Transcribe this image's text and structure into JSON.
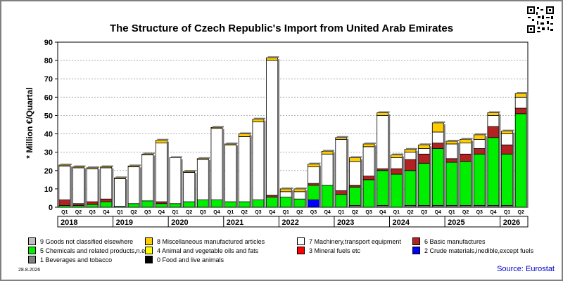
{
  "title": "The Structure of Czech Republic's Import from United Arab Emirates",
  "footer_date": "28.8.2026",
  "source": "Source: Eurostat",
  "chart_data": {
    "type": "bar",
    "stacked": true,
    "ylabel": "* Million €/Quartal",
    "ylim": [
      0,
      90
    ],
    "yticks": [
      0,
      10,
      20,
      30,
      40,
      50,
      60,
      70,
      80,
      90
    ],
    "grid": true,
    "categories": [
      "Q1",
      "Q2",
      "Q3",
      "Q4",
      "Q1",
      "Q2",
      "Q3",
      "Q4",
      "Q1",
      "Q2",
      "Q3",
      "Q4",
      "Q1",
      "Q2",
      "Q3",
      "Q4",
      "Q1",
      "Q2",
      "Q3",
      "Q4",
      "Q1",
      "Q2",
      "Q3",
      "Q4",
      "Q1",
      "Q2",
      "Q3",
      "Q4",
      "Q1",
      "Q2",
      "Q3",
      "Q4",
      "Q1",
      "Q2"
    ],
    "years": [
      {
        "label": "2018",
        "count": 4
      },
      {
        "label": "2019",
        "count": 4
      },
      {
        "label": "2020",
        "count": 4
      },
      {
        "label": "2021",
        "count": 4
      },
      {
        "label": "2022",
        "count": 4
      },
      {
        "label": "2023",
        "count": 4
      },
      {
        "label": "2024",
        "count": 4
      },
      {
        "label": "2025",
        "count": 4
      },
      {
        "label": "2026",
        "count": 2
      }
    ],
    "series": [
      {
        "name": "0 Food and live animals",
        "color": "#000000",
        "values": [
          0,
          0,
          0,
          0,
          0,
          0,
          0,
          0,
          0,
          0,
          0,
          0,
          0,
          0,
          0,
          0,
          0,
          0,
          0,
          0,
          0,
          0,
          0,
          0,
          0,
          0,
          0,
          0,
          0,
          0,
          0,
          0,
          0,
          0
        ]
      },
      {
        "name": "1 Beverages and tobacco",
        "color": "#808080",
        "values": [
          0,
          0,
          0,
          0,
          0,
          0,
          0,
          0,
          0,
          0,
          0,
          0,
          0,
          0,
          0,
          0,
          0,
          0,
          0,
          0,
          0,
          1,
          0,
          1,
          0,
          1,
          1,
          1,
          1,
          1,
          1,
          1,
          1,
          0
        ]
      },
      {
        "name": "2 Crude materials,inedible,except fuels",
        "color": "#0000ff",
        "values": [
          0,
          0,
          0,
          0,
          0,
          0,
          0,
          0,
          0,
          0,
          0,
          0,
          0,
          0,
          0,
          0,
          0,
          0,
          4,
          0,
          0,
          0,
          0,
          0,
          0,
          0,
          0,
          0,
          0,
          0,
          0,
          0,
          0,
          0
        ]
      },
      {
        "name": "3 Mineral fuels etc",
        "color": "#ff0000",
        "values": [
          0,
          0,
          0,
          0,
          0,
          0,
          0,
          0,
          0,
          0,
          0,
          0,
          0,
          0,
          0,
          0,
          0,
          0,
          0,
          0,
          0,
          0,
          0,
          0,
          0,
          0,
          0,
          0,
          0,
          0,
          0,
          0,
          0,
          0
        ]
      },
      {
        "name": "4 Animal and vegetable oils and fats",
        "color": "#ffff00",
        "values": [
          0,
          0,
          0,
          0,
          0,
          0,
          0,
          0,
          0,
          0,
          0,
          0,
          0,
          0,
          0,
          0,
          0,
          0,
          0,
          0,
          0,
          0,
          0,
          0,
          0,
          0,
          0,
          0,
          0,
          0,
          0,
          0,
          0,
          0
        ]
      },
      {
        "name": "5 Chemicals and related products,n.e.s.",
        "color": "#00ee00",
        "values": [
          1,
          1,
          1.5,
          3,
          0.5,
          2,
          3.5,
          2,
          2,
          3,
          4,
          4,
          3,
          3,
          4,
          5.5,
          5.5,
          4.5,
          8,
          12,
          7,
          10,
          15,
          19,
          18,
          19,
          23,
          31,
          23.5,
          24,
          28,
          37,
          28,
          51
        ]
      },
      {
        "name": "6 Basic manufactures",
        "color": "#b22222",
        "values": [
          3,
          1,
          1.5,
          1.5,
          0,
          0,
          0,
          1,
          0,
          0,
          0,
          0,
          0,
          0,
          0,
          1,
          0,
          0,
          1,
          0,
          2,
          1,
          2,
          1,
          3,
          6,
          5,
          3,
          2,
          4,
          3,
          6,
          5,
          3
        ]
      },
      {
        "name": "7 Machinery,transport equipment",
        "color": "#ffffff",
        "values": [
          18.5,
          19.5,
          18,
          17,
          15,
          20,
          25,
          32,
          25,
          16,
          22,
          39,
          31,
          35.5,
          42.5,
          73.5,
          3,
          4,
          9,
          17,
          28,
          13,
          16,
          29,
          6,
          4,
          3,
          6,
          8,
          6,
          5,
          6,
          6,
          6
        ]
      },
      {
        "name": "8 Miscellaneous manufactured articles",
        "color": "#ffcc00",
        "values": [
          0.5,
          0.5,
          0.5,
          0.5,
          0.5,
          0.5,
          0.5,
          1.5,
          0,
          0.5,
          0.5,
          0.5,
          0.5,
          1.5,
          1.5,
          1.5,
          1.5,
          1.5,
          1.5,
          1.5,
          1,
          2,
          1.5,
          1.5,
          1.5,
          1.5,
          2,
          5,
          1.5,
          2,
          2.5,
          1.5,
          1.5,
          2
        ]
      },
      {
        "name": "9 Goods not classified elsewhere",
        "color": "#c0c0c0",
        "values": [
          0,
          0,
          0,
          0,
          0,
          0,
          0,
          0,
          0,
          0,
          0,
          0,
          0,
          0,
          0,
          0,
          0,
          0,
          0,
          0,
          0,
          0,
          0,
          0,
          0,
          0,
          0,
          0,
          0,
          0,
          0,
          0,
          0,
          0
        ]
      }
    ],
    "legend_order": [
      9,
      8,
      7,
      6,
      5,
      4,
      3,
      2,
      1,
      0
    ],
    "legend_placement": "bottom"
  }
}
